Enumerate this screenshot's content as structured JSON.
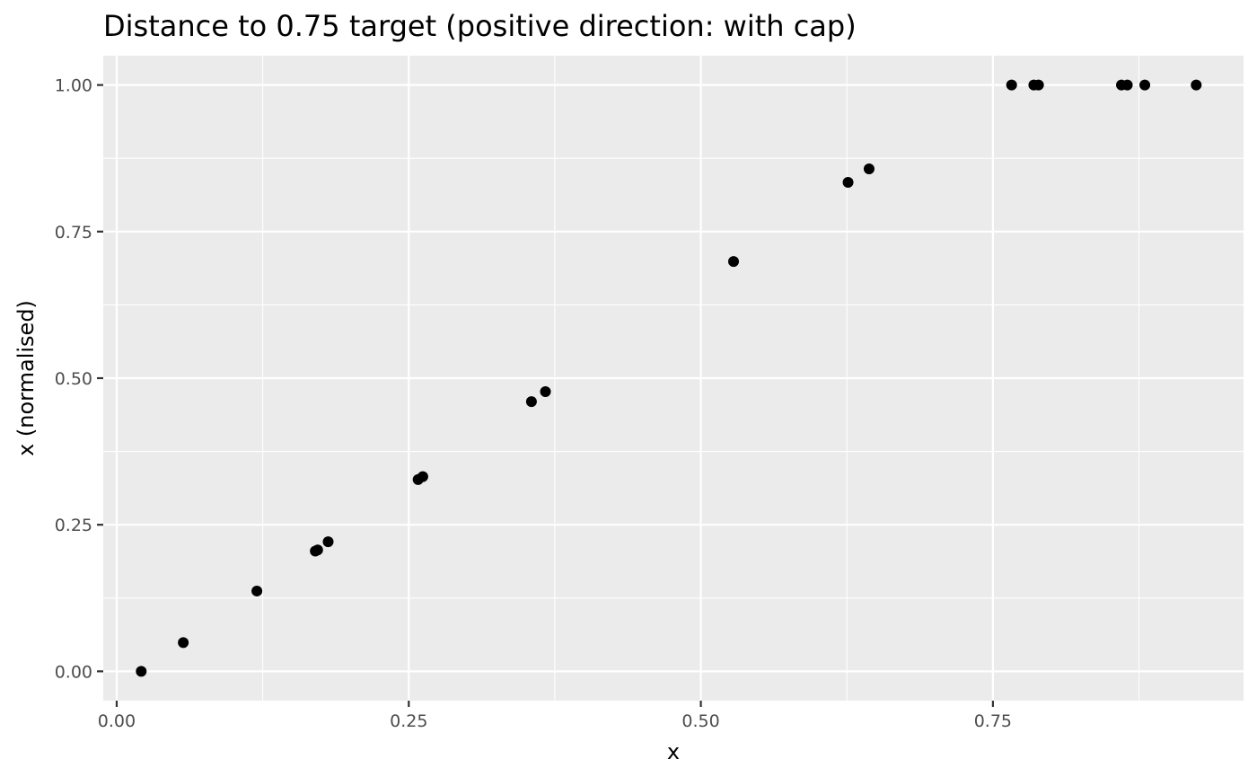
{
  "chart_data": {
    "type": "scatter",
    "title": "Distance to 0.75 target (positive direction: with cap)",
    "xlabel": "x",
    "ylabel": "x (normalised)",
    "xlim": [
      -0.0115,
      0.9645
    ],
    "ylim": [
      -0.05,
      1.05
    ],
    "x_ticks": [
      0.0,
      0.25,
      0.5,
      0.75
    ],
    "x_tick_labels": [
      "0.00",
      "0.25",
      "0.50",
      "0.75"
    ],
    "x_minor_ticks": [
      0.125,
      0.375,
      0.625,
      0.875
    ],
    "y_ticks": [
      0.0,
      0.25,
      0.5,
      0.75,
      1.0
    ],
    "y_tick_labels": [
      "0.00",
      "0.25",
      "0.50",
      "0.75",
      "1.00"
    ],
    "y_minor_ticks": [
      0.125,
      0.375,
      0.625,
      0.875
    ],
    "grid": true,
    "background": "#ebebeb",
    "point_color": "#000000",
    "points": [
      {
        "x": 0.021,
        "y": 0.0
      },
      {
        "x": 0.057,
        "y": 0.049
      },
      {
        "x": 0.12,
        "y": 0.137
      },
      {
        "x": 0.17,
        "y": 0.205
      },
      {
        "x": 0.172,
        "y": 0.207
      },
      {
        "x": 0.181,
        "y": 0.221
      },
      {
        "x": 0.258,
        "y": 0.327
      },
      {
        "x": 0.262,
        "y": 0.332
      },
      {
        "x": 0.355,
        "y": 0.46
      },
      {
        "x": 0.367,
        "y": 0.477
      },
      {
        "x": 0.528,
        "y": 0.699
      },
      {
        "x": 0.626,
        "y": 0.834
      },
      {
        "x": 0.644,
        "y": 0.857
      },
      {
        "x": 0.766,
        "y": 1.0
      },
      {
        "x": 0.785,
        "y": 1.0
      },
      {
        "x": 0.789,
        "y": 1.0
      },
      {
        "x": 0.86,
        "y": 1.0
      },
      {
        "x": 0.865,
        "y": 1.0
      },
      {
        "x": 0.88,
        "y": 1.0
      },
      {
        "x": 0.924,
        "y": 1.0
      }
    ]
  }
}
